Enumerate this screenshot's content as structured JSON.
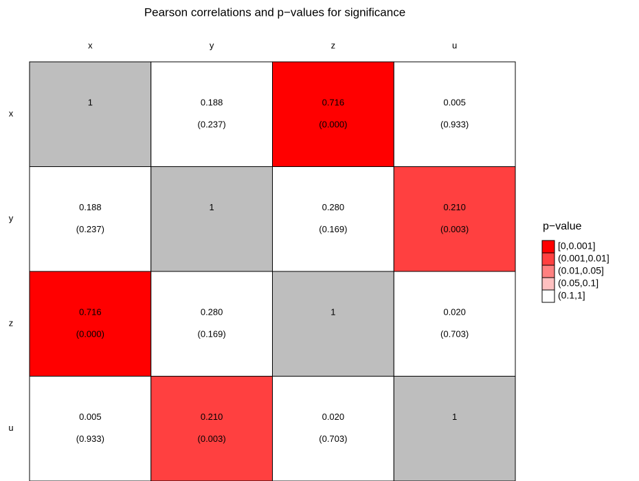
{
  "chart_data": {
    "type": "heatmap",
    "title": "Pearson correlations and p−values for significance",
    "categories": [
      "x",
      "y",
      "z",
      "u"
    ],
    "rows": [
      {
        "values": [
          1,
          0.188,
          0.716,
          0.005
        ],
        "value_labels": [
          "1",
          "0.188",
          "0.716",
          "0.005"
        ],
        "p_values": [
          null,
          0.237,
          0.0,
          0.933
        ],
        "p_labels": [
          null,
          "(0.237)",
          "(0.000)",
          "(0.933)"
        ]
      },
      {
        "values": [
          0.188,
          1,
          0.28,
          0.21
        ],
        "value_labels": [
          "0.188",
          "1",
          "0.280",
          "0.210"
        ],
        "p_values": [
          0.237,
          null,
          0.169,
          0.003
        ],
        "p_labels": [
          "(0.237)",
          null,
          "(0.169)",
          "(0.003)"
        ]
      },
      {
        "values": [
          0.716,
          0.28,
          1,
          0.02
        ],
        "value_labels": [
          "0.716",
          "0.280",
          "1",
          "0.020"
        ],
        "p_values": [
          0.0,
          0.169,
          null,
          0.703
        ],
        "p_labels": [
          "(0.000)",
          "(0.169)",
          null,
          "(0.703)"
        ]
      },
      {
        "values": [
          0.005,
          0.21,
          0.02,
          1
        ],
        "value_labels": [
          "0.005",
          "0.210",
          "0.020",
          "1"
        ],
        "p_values": [
          0.933,
          0.003,
          0.703,
          null
        ],
        "p_labels": [
          "(0.933)",
          "(0.003)",
          "(0.703)",
          null
        ]
      }
    ],
    "diagonal_color": "#bebebe",
    "p_breaks": [
      0,
      0.001,
      0.01,
      0.05,
      0.1,
      1
    ],
    "legend": {
      "title": "p−value",
      "items": [
        {
          "label": "[0,0.001]",
          "color": "#ff0000"
        },
        {
          "label": "(0.001,0.01]",
          "color": "#ff4040"
        },
        {
          "label": "(0.01,0.05]",
          "color": "#ff8080"
        },
        {
          "label": "(0.05,0.1]",
          "color": "#ffc0c0"
        },
        {
          "label": "(0.1,1]",
          "color": "#ffffff"
        }
      ]
    }
  }
}
